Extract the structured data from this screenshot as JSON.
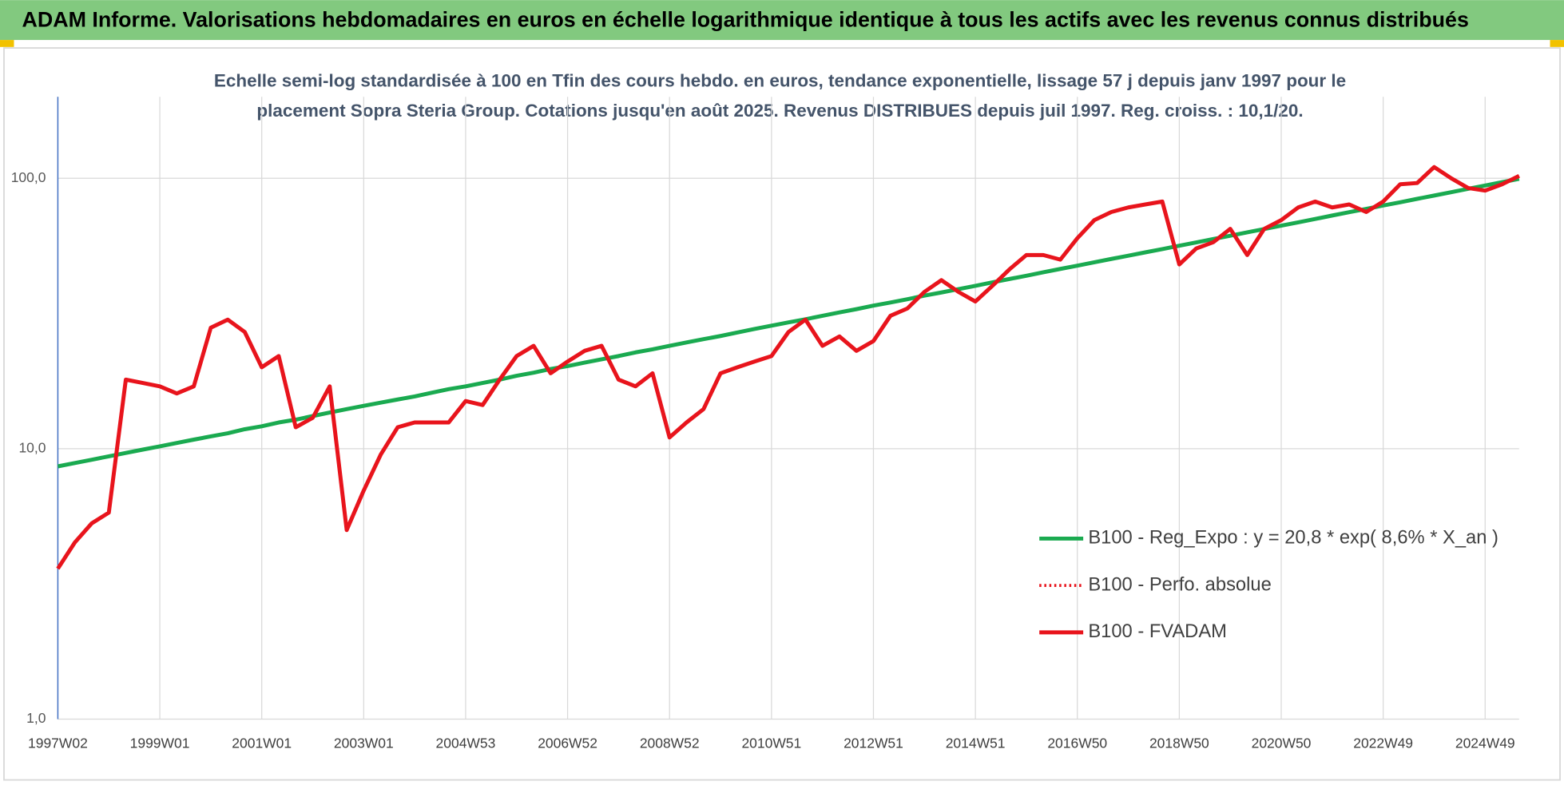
{
  "chart_data": {
    "type": "line",
    "title": "ADAM Informe. Valorisations hebdomadaires en euros en échelle logarithmique identique à tous les actifs avec les revenus connus distribués",
    "subtitle": [
      "Echelle semi-log standardisée à 100 en Tfin des cours hebdo. en euros, tendance exponentielle, lissage 57 j depuis janv 1997 pour le",
      "placement Sopra Steria Group. Cotations jusqu'en août 2025. Revenus DISTRIBUES depuis juil 1997. Reg. croiss. : 10,1/20."
    ],
    "yscale": "log",
    "grid": true,
    "legend": "right",
    "ylim": [
      1,
      200
    ],
    "yticks": [
      {
        "value": 1,
        "label": "1,0"
      },
      {
        "value": 10,
        "label": "10,0"
      },
      {
        "value": 100,
        "label": "100,0"
      }
    ],
    "categories": [
      "1997W02",
      null,
      null,
      null,
      null,
      null,
      "1999W01",
      null,
      null,
      null,
      null,
      null,
      "2001W01",
      null,
      null,
      null,
      null,
      null,
      "2003W01",
      null,
      null,
      null,
      null,
      null,
      "2004W53",
      null,
      null,
      null,
      null,
      null,
      "2006W52",
      null,
      null,
      null,
      null,
      null,
      "2008W52",
      null,
      null,
      null,
      null,
      null,
      "2010W51",
      null,
      null,
      null,
      null,
      null,
      "2012W51",
      null,
      null,
      null,
      null,
      null,
      "2014W51",
      null,
      null,
      null,
      null,
      null,
      "2016W50",
      null,
      null,
      null,
      null,
      null,
      "2018W50",
      null,
      null,
      null,
      null,
      null,
      "2020W50",
      null,
      null,
      null,
      null,
      null,
      "2022W49",
      null,
      null,
      null,
      null,
      null,
      "2024W49",
      null,
      null
    ],
    "series": [
      {
        "name": "B100 - Reg_Expo : y = 20,8 * exp( 8,6% *  X_an )",
        "color": "#1aaa50",
        "dash": "solid",
        "values": [
          8.6,
          8.85,
          9.1,
          9.37,
          9.64,
          9.92,
          10.2,
          10.5,
          10.8,
          11.1,
          11.4,
          11.8,
          12.1,
          12.5,
          12.8,
          13.2,
          13.6,
          14.0,
          14.4,
          14.8,
          15.2,
          15.6,
          16.1,
          16.6,
          17.0,
          17.5,
          18.0,
          18.6,
          19.1,
          19.7,
          20.2,
          20.8,
          21.4,
          22.0,
          22.7,
          23.3,
          24.0,
          24.7,
          25.4,
          26.1,
          26.9,
          27.7,
          28.5,
          29.3,
          30.1,
          31.0,
          31.9,
          32.8,
          33.8,
          34.7,
          35.7,
          36.8,
          37.8,
          38.9,
          40.0,
          41.2,
          42.4,
          43.6,
          44.9,
          46.2,
          47.5,
          48.9,
          50.3,
          51.7,
          53.2,
          54.7,
          56.3,
          57.9,
          59.6,
          61.3,
          63.1,
          64.9,
          66.8,
          68.7,
          70.7,
          72.8,
          74.9,
          77.0,
          79.3,
          81.5,
          83.9,
          86.3,
          88.8,
          91.4,
          94.0,
          96.7,
          99.5
        ]
      },
      {
        "name": "B100 - Perfo. absolue",
        "color": "#e8141c",
        "dash": "dotted",
        "values": [
          3.6,
          4.5,
          5.3,
          5.8,
          18,
          17.5,
          17,
          16,
          17,
          28,
          30,
          27,
          20,
          22,
          12,
          13,
          17,
          5,
          7,
          9.5,
          12,
          12.5,
          12.5,
          12.5,
          15,
          14.5,
          18,
          22,
          24,
          19,
          21,
          23,
          24,
          18,
          17,
          19,
          11,
          12.5,
          14,
          19,
          20,
          21,
          22,
          27,
          30,
          24,
          26,
          23,
          25,
          31,
          33,
          38,
          42,
          38,
          35,
          40,
          46,
          52,
          52,
          50,
          60,
          70,
          75,
          78,
          80,
          82,
          48,
          55,
          58,
          65,
          52,
          65,
          70,
          78,
          82,
          78,
          80,
          75,
          82,
          95,
          96,
          110,
          100,
          92,
          90,
          95,
          102
        ]
      },
      {
        "name": "B100 - FVADAM",
        "color": "#e8141c",
        "dash": "solid",
        "values": [
          3.6,
          4.5,
          5.3,
          5.8,
          18,
          17.5,
          17,
          16,
          17,
          28,
          30,
          27,
          20,
          22,
          12,
          13,
          17,
          5,
          7,
          9.5,
          12,
          12.5,
          12.5,
          12.5,
          15,
          14.5,
          18,
          22,
          24,
          19,
          21,
          23,
          24,
          18,
          17,
          19,
          11,
          12.5,
          14,
          19,
          20,
          21,
          22,
          27,
          30,
          24,
          26,
          23,
          25,
          31,
          33,
          38,
          42,
          38,
          35,
          40,
          46,
          52,
          52,
          50,
          60,
          70,
          75,
          78,
          80,
          82,
          48,
          55,
          58,
          65,
          52,
          65,
          70,
          78,
          82,
          78,
          80,
          75,
          82,
          95,
          96,
          110,
          100,
          92,
          90,
          95,
          102
        ]
      }
    ]
  }
}
